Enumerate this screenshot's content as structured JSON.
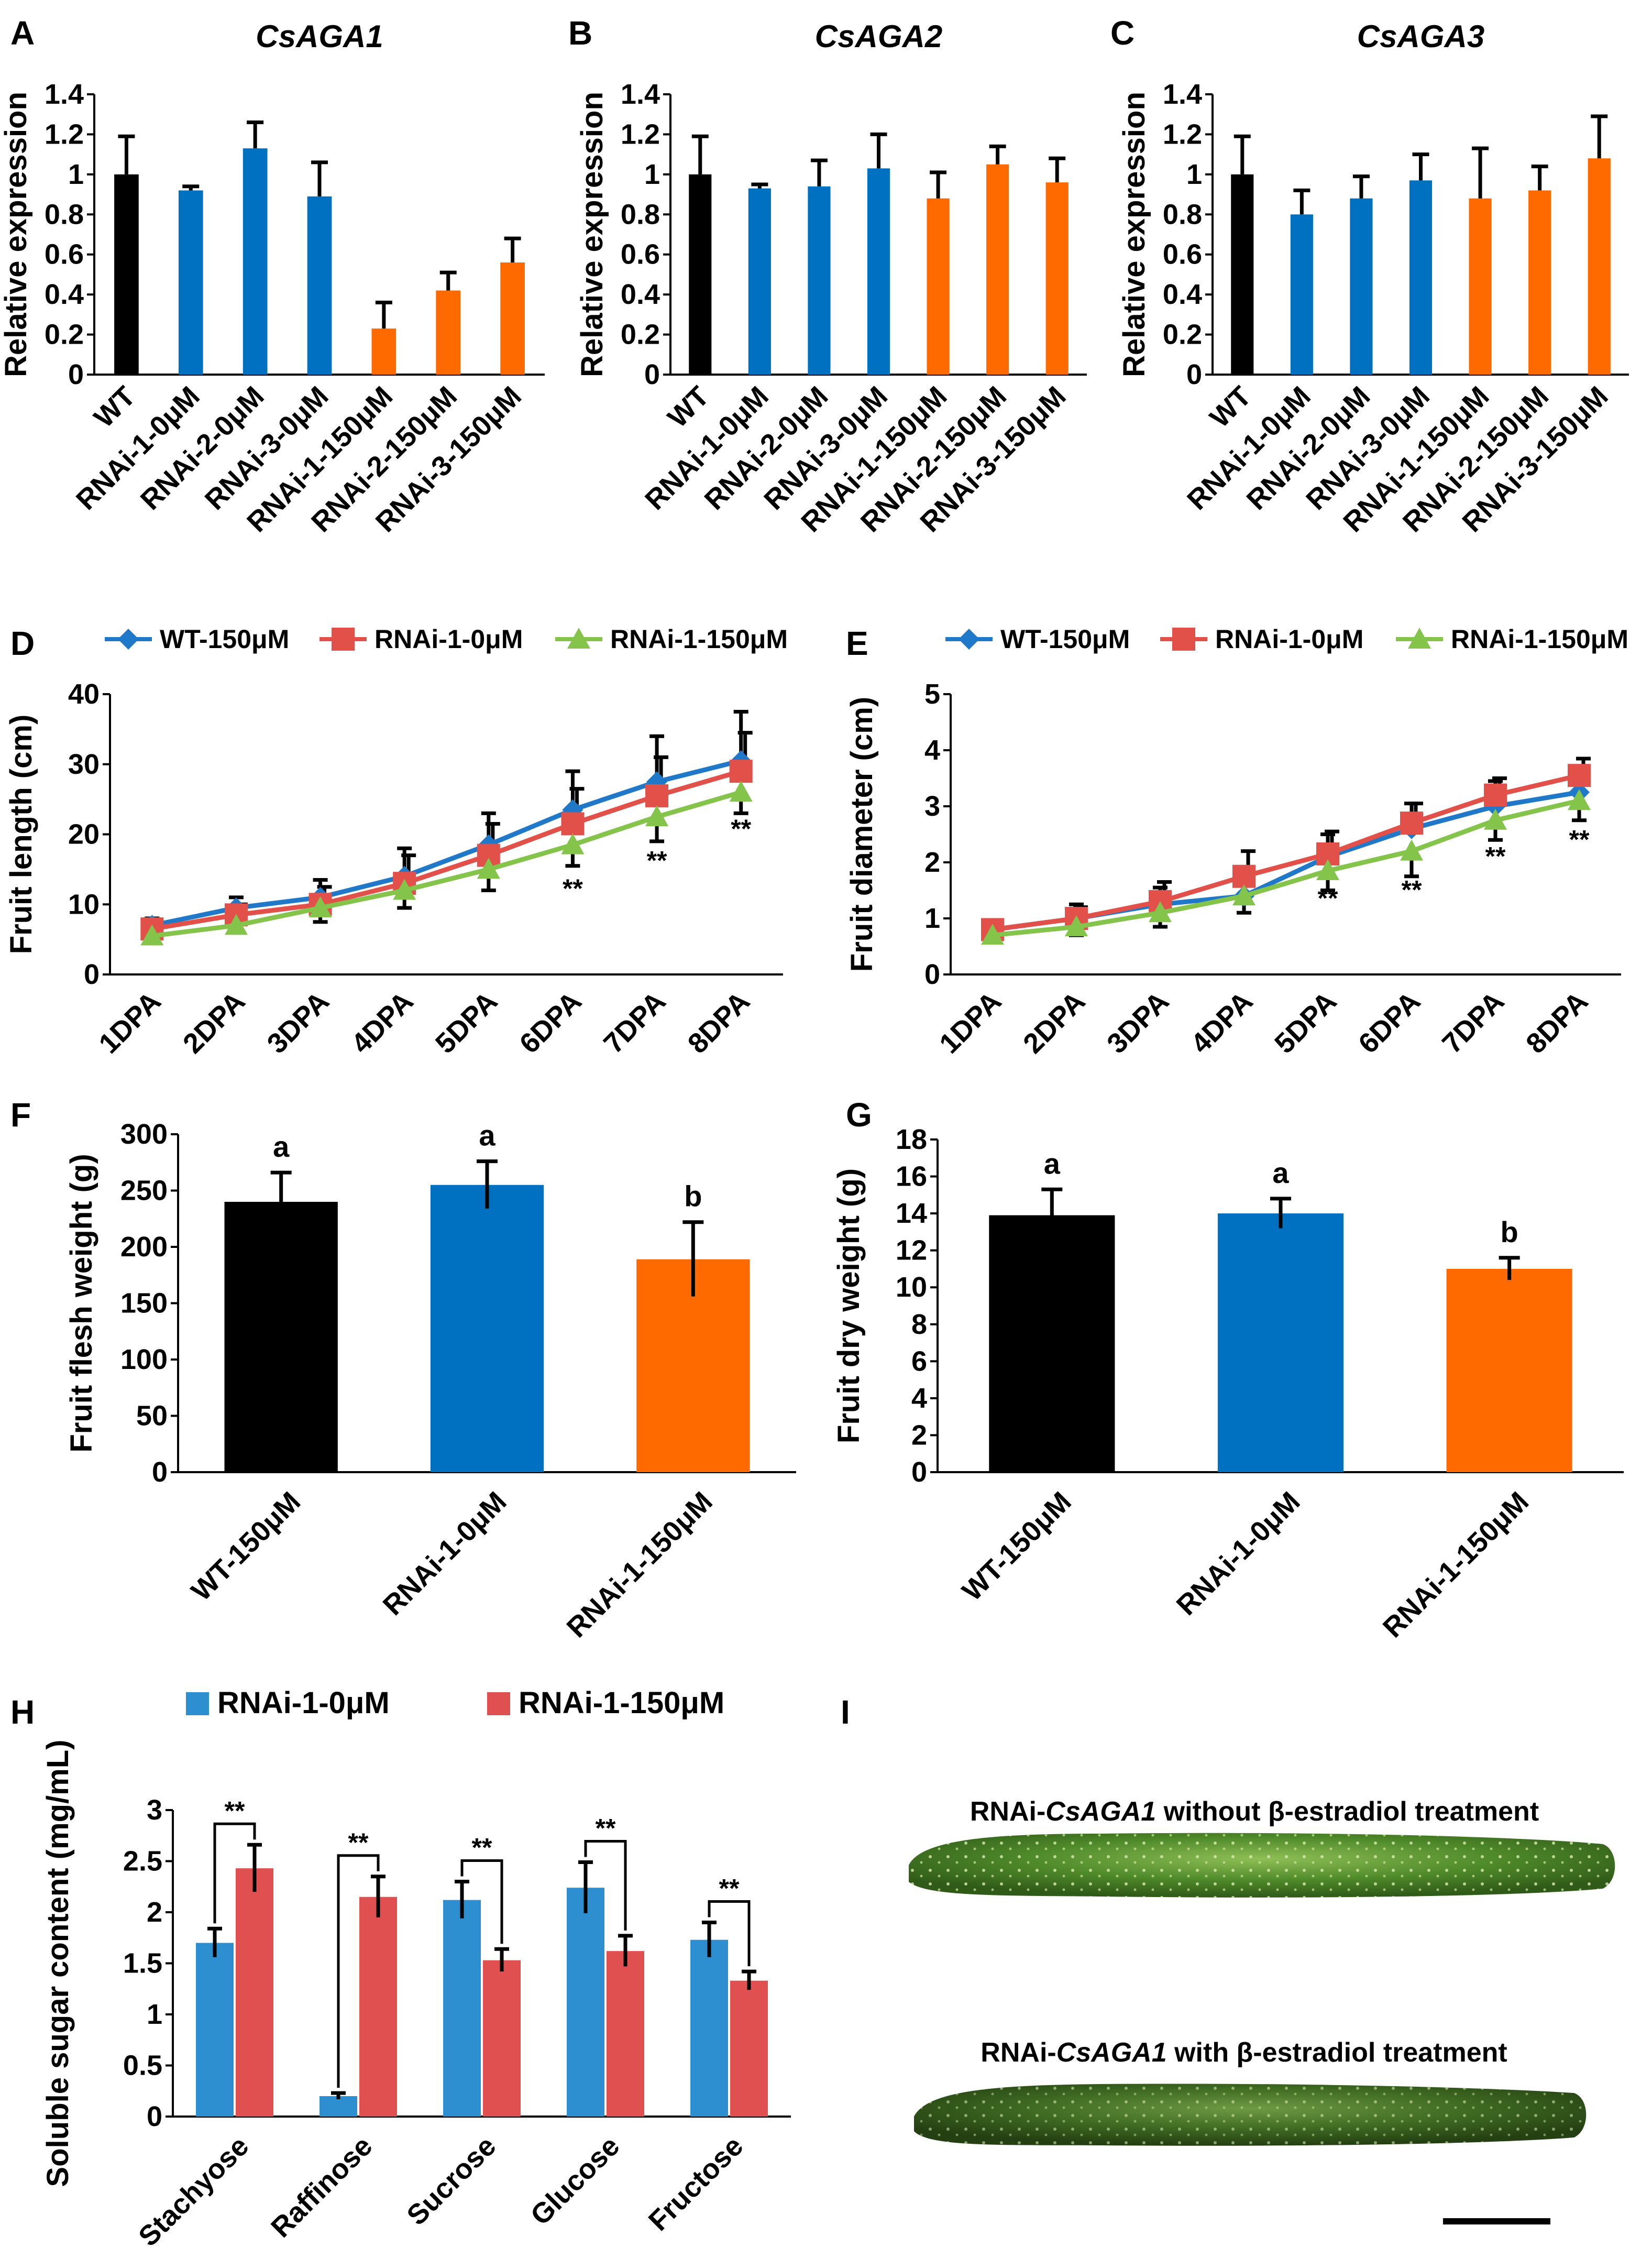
{
  "colors": {
    "black": "#000000",
    "blue": "#0070c0",
    "orange": "#ff6a00",
    "line_blue": "#1f78c8",
    "line_red": "#e2504a",
    "line_green": "#84c44a",
    "sugar_blue": "#2e8fd0",
    "sugar_red": "#e05050"
  },
  "panels": {
    "A": "A",
    "B": "B",
    "C": "C",
    "D": "D",
    "E": "E",
    "F": "F",
    "G": "G",
    "H": "H",
    "I": "I"
  },
  "chart_data": [
    {
      "id": "A",
      "type": "bar",
      "title": "CsAGA1",
      "ylabel": "Relative expression",
      "ylim": [
        0,
        1.4
      ],
      "yticks": [
        "0",
        "0.2",
        "0.4",
        "0.6",
        "0.8",
        "1",
        "1.2",
        "1.4"
      ],
      "categories": [
        "WT",
        "RNAi-1-0μM",
        "RNAi-2-0μM",
        "RNAi-3-0μM",
        "RNAi-1-150μM",
        "RNAi-2-150μM",
        "RNAi-3-150μM"
      ],
      "values": [
        1.0,
        0.92,
        1.13,
        0.89,
        0.23,
        0.42,
        0.56
      ],
      "errors": [
        0.19,
        0.02,
        0.13,
        0.17,
        0.13,
        0.09,
        0.12
      ],
      "bar_colors": [
        "black",
        "blue",
        "blue",
        "blue",
        "orange",
        "orange",
        "orange"
      ]
    },
    {
      "id": "B",
      "type": "bar",
      "title": "CsAGA2",
      "ylabel": "Relative expression",
      "ylim": [
        0,
        1.4
      ],
      "yticks": [
        "0",
        "0.2",
        "0.4",
        "0.6",
        "0.8",
        "1",
        "1.2",
        "1.4"
      ],
      "categories": [
        "WT",
        "RNAi-1-0μM",
        "RNAi-2-0μM",
        "RNAi-3-0μM",
        "RNAi-1-150μM",
        "RNAi-2-150μM",
        "RNAi-3-150μM"
      ],
      "values": [
        1.0,
        0.93,
        0.94,
        1.03,
        0.88,
        1.05,
        0.96
      ],
      "errors": [
        0.19,
        0.02,
        0.13,
        0.17,
        0.13,
        0.09,
        0.12
      ],
      "bar_colors": [
        "black",
        "blue",
        "blue",
        "blue",
        "orange",
        "orange",
        "orange"
      ]
    },
    {
      "id": "C",
      "type": "bar",
      "title": "CsAGA3",
      "ylabel": "Relative expression",
      "ylim": [
        0,
        1.4
      ],
      "yticks": [
        "0",
        "0.2",
        "0.4",
        "0.6",
        "0.8",
        "1",
        "1.2",
        "1.4"
      ],
      "categories": [
        "WT",
        "RNAi-1-0μM",
        "RNAi-2-0μM",
        "RNAi-3-0μM",
        "RNAi-1-150μM",
        "RNAi-2-150μM",
        "RNAi-3-150μM"
      ],
      "values": [
        1.0,
        0.8,
        0.88,
        0.97,
        0.88,
        0.92,
        1.08
      ],
      "errors": [
        0.19,
        0.12,
        0.11,
        0.13,
        0.25,
        0.12,
        0.21
      ],
      "bar_colors": [
        "black",
        "blue",
        "blue",
        "blue",
        "orange",
        "orange",
        "orange"
      ]
    },
    {
      "id": "D",
      "type": "line",
      "ylabel": "Fruit length (cm)",
      "ylim": [
        0,
        40
      ],
      "yticks": [
        "0",
        "10",
        "20",
        "30",
        "40"
      ],
      "categories": [
        "1DPA",
        "2DPA",
        "3DPA",
        "4DPA",
        "5DPA",
        "6DPA",
        "7DPA",
        "8DPA"
      ],
      "series": [
        {
          "name": "WT-150μM",
          "color": "line_blue",
          "marker": "diamond",
          "values": [
            7.0,
            9.5,
            11.0,
            14.0,
            18.5,
            23.5,
            27.5,
            30.5
          ],
          "errors": [
            1.0,
            1.5,
            2.5,
            4.0,
            4.5,
            5.5,
            6.5,
            7.0
          ]
        },
        {
          "name": "RNAi-1-0μM",
          "color": "line_red",
          "marker": "square",
          "values": [
            6.5,
            8.5,
            10.0,
            13.0,
            17.0,
            21.5,
            25.5,
            29.0
          ],
          "errors": [
            1.0,
            1.5,
            2.5,
            4.0,
            4.5,
            5.0,
            5.5,
            5.5
          ]
        },
        {
          "name": "RNAi-1-150μM",
          "color": "line_green",
          "marker": "triangle",
          "values": [
            5.5,
            7.0,
            9.5,
            12.0,
            15.0,
            18.5,
            22.5,
            26.0
          ],
          "errors": [
            1.0,
            1.0,
            2.0,
            2.5,
            3.0,
            3.0,
            3.5,
            3.0
          ]
        }
      ],
      "annotations": [
        {
          "text": "**",
          "category": "6DPA",
          "y": 11.0
        },
        {
          "text": "**",
          "category": "7DPA",
          "y": 15.0
        },
        {
          "text": "**",
          "category": "8DPA",
          "y": 19.5
        }
      ]
    },
    {
      "id": "E",
      "type": "line",
      "ylabel": "Fruit diameter (cm)",
      "ylim": [
        0,
        5
      ],
      "yticks": [
        "0",
        "1",
        "2",
        "3",
        "4",
        "5"
      ],
      "categories": [
        "1DPA",
        "2DPA",
        "3DPA",
        "4DPA",
        "5DPA",
        "6DPA",
        "7DPA",
        "8DPA"
      ],
      "series": [
        {
          "name": "WT-150μM",
          "color": "line_blue",
          "marker": "diamond",
          "values": [
            0.8,
            1.0,
            1.25,
            1.4,
            2.1,
            2.6,
            3.0,
            3.25
          ],
          "errors": [
            0.1,
            0.25,
            0.3,
            0.45,
            0.4,
            0.45,
            0.45,
            0.4
          ]
        },
        {
          "name": "RNAi-1-0μM",
          "color": "line_red",
          "marker": "square",
          "values": [
            0.8,
            1.0,
            1.3,
            1.75,
            2.15,
            2.7,
            3.2,
            3.55
          ],
          "errors": [
            0.1,
            0.2,
            0.35,
            0.45,
            0.4,
            0.35,
            0.3,
            0.3
          ]
        },
        {
          "name": "RNAi-1-150μM",
          "color": "line_green",
          "marker": "triangle",
          "values": [
            0.7,
            0.85,
            1.1,
            1.4,
            1.85,
            2.2,
            2.75,
            3.1
          ],
          "errors": [
            0.1,
            0.15,
            0.25,
            0.3,
            0.35,
            0.45,
            0.35,
            0.35
          ]
        }
      ],
      "annotations": [
        {
          "text": "**",
          "category": "5DPA",
          "y": 1.2
        },
        {
          "text": "**",
          "category": "6DPA",
          "y": 1.35
        },
        {
          "text": "**",
          "category": "7DPA",
          "y": 1.95
        },
        {
          "text": "**",
          "category": "8DPA",
          "y": 2.25
        }
      ]
    },
    {
      "id": "F",
      "type": "bar",
      "ylabel": "Fruit flesh weight (g)",
      "ylim": [
        0,
        300
      ],
      "yticks": [
        "0",
        "50",
        "100",
        "150",
        "200",
        "250",
        "300"
      ],
      "categories": [
        "WT-150μM",
        "RNAi-1-0μM",
        "RNAi-1-150μM"
      ],
      "values": [
        240,
        255,
        189
      ],
      "errors": [
        26,
        21,
        33
      ],
      "labels": [
        "a",
        "a",
        "b"
      ],
      "bar_colors": [
        "black",
        "blue",
        "orange"
      ]
    },
    {
      "id": "G",
      "type": "bar",
      "ylabel": "Fruit dry weight (g)",
      "ylim": [
        0,
        18
      ],
      "yticks": [
        "0",
        "2",
        "4",
        "6",
        "8",
        "10",
        "12",
        "14",
        "16",
        "18"
      ],
      "categories": [
        "WT-150μM",
        "RNAi-1-0μM",
        "RNAi-1-150μM"
      ],
      "values": [
        13.9,
        14.0,
        11.0
      ],
      "errors": [
        1.4,
        0.8,
        0.6
      ],
      "labels": [
        "a",
        "a",
        "b"
      ],
      "bar_colors": [
        "black",
        "blue",
        "orange"
      ]
    },
    {
      "id": "H",
      "type": "bar",
      "ylabel": "Soluble sugar content (mg/mL)",
      "ylim": [
        0,
        3
      ],
      "yticks": [
        "0",
        "0.5",
        "1",
        "1.5",
        "2",
        "2.5",
        "3"
      ],
      "categories": [
        "Stachyose",
        "Raffinose",
        "Sucrose",
        "Glucose",
        "Fructose"
      ],
      "series": [
        {
          "name": "RNAi-1-0μM",
          "color": "sugar_blue",
          "values": [
            1.7,
            0.2,
            2.12,
            2.24,
            1.73
          ],
          "errors": [
            0.14,
            0.03,
            0.18,
            0.25,
            0.17
          ]
        },
        {
          "name": "RNAi-1-150μM",
          "color": "sugar_red",
          "values": [
            2.43,
            2.15,
            1.53,
            1.62,
            1.33
          ],
          "errors": [
            0.23,
            0.2,
            0.11,
            0.15,
            0.09
          ]
        }
      ],
      "annotations": [
        "**",
        "**",
        "**",
        "**",
        "**"
      ]
    }
  ],
  "photo": {
    "caption_top_prefix": "RNAi-",
    "caption_top_gene": "CsAGA1",
    "caption_top_suffix": " without β-estradiol treatment",
    "caption_bottom_prefix": "RNAi-",
    "caption_bottom_gene": "CsAGA1",
    "caption_bottom_suffix": " with β-estradiol treatment"
  }
}
